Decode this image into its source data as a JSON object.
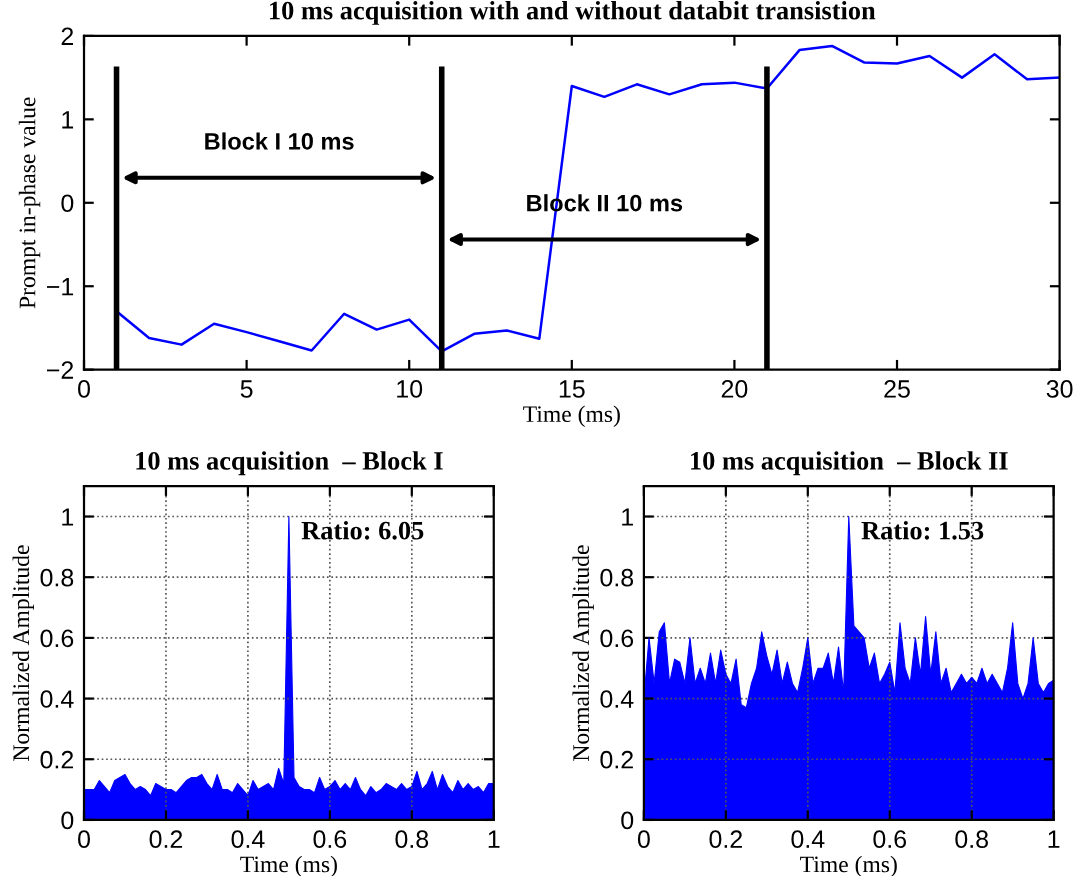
{
  "chart_data": [
    {
      "type": "line",
      "title": "10 ms acquisition with and without databit transistion",
      "xlabel": "Time (ms)",
      "ylabel": "Prompt in-phase value",
      "x": [
        1,
        2,
        3,
        4,
        5,
        6,
        7,
        8,
        9,
        10,
        11,
        12,
        13,
        14,
        15,
        16,
        17,
        18,
        19,
        20,
        21,
        22,
        23,
        24,
        25,
        26,
        27,
        28,
        29,
        30
      ],
      "series": [
        {
          "color": "#0000ff",
          "values": [
            -1.3,
            -1.62,
            -1.7,
            -1.45,
            -1.55,
            -1.66,
            -1.77,
            -1.33,
            -1.52,
            -1.4,
            -1.78,
            -1.57,
            -1.53,
            -1.63,
            1.4,
            1.27,
            1.42,
            1.3,
            1.42,
            1.44,
            1.37,
            1.83,
            1.88,
            1.68,
            1.67,
            1.76,
            1.5,
            1.78,
            1.48,
            1.5
          ]
        }
      ],
      "xlim": [
        0,
        30
      ],
      "xticks": [
        0,
        5,
        10,
        15,
        20,
        25,
        30
      ],
      "ylim": [
        -2,
        2
      ],
      "yticks": [
        {
          "value": -2,
          "label": "−2"
        },
        {
          "value": -1,
          "label": "−1"
        },
        0,
        1,
        2
      ],
      "ref_lines": [
        {
          "axis": "x",
          "value": 1,
          "color": "#000000"
        },
        {
          "axis": "x",
          "value": 11,
          "color": "#000000"
        },
        {
          "axis": "x",
          "value": 21,
          "color": "#000000"
        }
      ],
      "annotations": [
        "Block I 10 ms",
        "Block II 10 ms"
      ],
      "grid": false,
      "legend": false
    },
    {
      "type": "area",
      "title": "10 ms acquisition  – Block I",
      "xlabel": "Time (ms)",
      "ylabel": "Normalized Amplitude",
      "x": [
        0,
        0.0125,
        0.025,
        0.0375,
        0.05,
        0.0625,
        0.075,
        0.0875,
        0.1,
        0.1125,
        0.125,
        0.1375,
        0.15,
        0.1625,
        0.175,
        0.1875,
        0.2,
        0.2125,
        0.225,
        0.2375,
        0.25,
        0.2625,
        0.275,
        0.2875,
        0.3,
        0.3125,
        0.325,
        0.3375,
        0.35,
        0.3625,
        0.375,
        0.3875,
        0.4,
        0.4125,
        0.425,
        0.4375,
        0.45,
        0.4625,
        0.475,
        0.4875,
        0.5,
        0.5125,
        0.525,
        0.5375,
        0.55,
        0.5625,
        0.575,
        0.5875,
        0.6,
        0.6125,
        0.625,
        0.6375,
        0.65,
        0.6625,
        0.675,
        0.6875,
        0.7,
        0.7125,
        0.725,
        0.7375,
        0.75,
        0.7625,
        0.775,
        0.7875,
        0.8,
        0.8125,
        0.825,
        0.8375,
        0.85,
        0.8625,
        0.875,
        0.8875,
        0.9,
        0.9125,
        0.925,
        0.9375,
        0.95,
        0.9625,
        0.975,
        0.9875,
        1
      ],
      "series": [
        {
          "color": "#0000ff",
          "values": [
            0.1,
            0.1,
            0.1,
            0.13,
            0.11,
            0.09,
            0.13,
            0.14,
            0.15,
            0.12,
            0.1,
            0.11,
            0.1,
            0.08,
            0.12,
            0.11,
            0.1,
            0.1,
            0.09,
            0.11,
            0.13,
            0.14,
            0.14,
            0.15,
            0.12,
            0.1,
            0.15,
            0.1,
            0.1,
            0.09,
            0.12,
            0.1,
            0.08,
            0.13,
            0.1,
            0.11,
            0.12,
            0.1,
            0.17,
            0.12,
            1.0,
            0.14,
            0.11,
            0.1,
            0.1,
            0.09,
            0.14,
            0.1,
            0.11,
            0.13,
            0.1,
            0.12,
            0.1,
            0.14,
            0.1,
            0.08,
            0.11,
            0.09,
            0.1,
            0.12,
            0.11,
            0.1,
            0.12,
            0.1,
            0.11,
            0.16,
            0.1,
            0.12,
            0.16,
            0.1,
            0.15,
            0.11,
            0.09,
            0.13,
            0.1,
            0.12,
            0.1,
            0.11,
            0.09,
            0.12,
            0.12
          ]
        }
      ],
      "xlim": [
        0,
        1
      ],
      "xticks": [
        0,
        0.2,
        0.4,
        0.6,
        0.8,
        1
      ],
      "ylim": [
        0,
        1.1
      ],
      "yticks": [
        0,
        0.2,
        0.4,
        0.6,
        0.8,
        1
      ],
      "annotations": [
        "Ratio: 6.05"
      ],
      "grid": true,
      "legend": false
    },
    {
      "type": "area",
      "title": "10 ms acquisition  – Block II",
      "xlabel": "Time (ms)",
      "ylabel": "Normalized Amplitude",
      "x": [
        0,
        0.0125,
        0.025,
        0.0375,
        0.05,
        0.0625,
        0.075,
        0.0875,
        0.1,
        0.1125,
        0.125,
        0.1375,
        0.15,
        0.1625,
        0.175,
        0.1875,
        0.2,
        0.2125,
        0.225,
        0.2375,
        0.25,
        0.2625,
        0.275,
        0.2875,
        0.3,
        0.3125,
        0.325,
        0.3375,
        0.35,
        0.3625,
        0.375,
        0.3875,
        0.4,
        0.4125,
        0.425,
        0.4375,
        0.45,
        0.4625,
        0.475,
        0.4875,
        0.5,
        0.5125,
        0.525,
        0.5375,
        0.55,
        0.5625,
        0.575,
        0.5875,
        0.6,
        0.6125,
        0.625,
        0.6375,
        0.65,
        0.6625,
        0.675,
        0.6875,
        0.7,
        0.7125,
        0.725,
        0.7375,
        0.75,
        0.7625,
        0.775,
        0.7875,
        0.8,
        0.8125,
        0.825,
        0.8375,
        0.85,
        0.8625,
        0.875,
        0.8875,
        0.9,
        0.9125,
        0.925,
        0.9375,
        0.95,
        0.9625,
        0.975,
        0.9875,
        1
      ],
      "series": [
        {
          "color": "#0000ff",
          "values": [
            0.4,
            0.6,
            0.45,
            0.62,
            0.65,
            0.45,
            0.53,
            0.52,
            0.45,
            0.6,
            0.45,
            0.5,
            0.45,
            0.55,
            0.45,
            0.56,
            0.48,
            0.45,
            0.53,
            0.38,
            0.37,
            0.45,
            0.5,
            0.62,
            0.54,
            0.48,
            0.56,
            0.45,
            0.52,
            0.45,
            0.42,
            0.5,
            0.6,
            0.45,
            0.5,
            0.5,
            0.55,
            0.45,
            0.57,
            0.42,
            1.0,
            0.64,
            0.62,
            0.6,
            0.5,
            0.55,
            0.45,
            0.48,
            0.52,
            0.42,
            0.65,
            0.5,
            0.45,
            0.6,
            0.48,
            0.67,
            0.48,
            0.62,
            0.45,
            0.5,
            0.42,
            0.45,
            0.48,
            0.45,
            0.47,
            0.45,
            0.5,
            0.45,
            0.48,
            0.45,
            0.42,
            0.5,
            0.65,
            0.45,
            0.4,
            0.45,
            0.6,
            0.45,
            0.42,
            0.45,
            0.46
          ]
        }
      ],
      "xlim": [
        0,
        1
      ],
      "xticks": [
        0,
        0.2,
        0.4,
        0.6,
        0.8,
        1
      ],
      "ylim": [
        0,
        1.1
      ],
      "yticks": [
        0,
        0.2,
        0.4,
        0.6,
        0.8,
        1
      ],
      "annotations": [
        "Ratio: 1.53"
      ],
      "grid": true,
      "legend": false
    }
  ]
}
